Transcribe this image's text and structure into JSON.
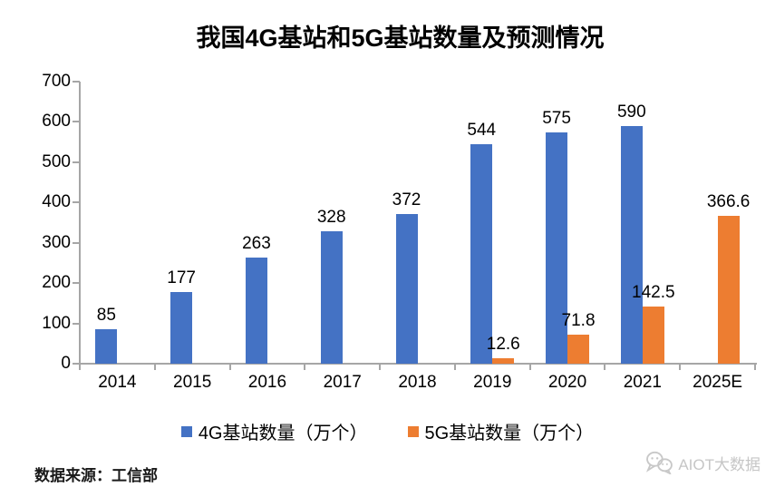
{
  "title": "我国4G基站和5G基站数量及预测情况",
  "chart_data": {
    "type": "bar",
    "categories": [
      "2014",
      "2015",
      "2016",
      "2017",
      "2018",
      "2019",
      "2020",
      "2021",
      "2025E"
    ],
    "series": [
      {
        "name": "4G基站数量（万个）",
        "color": "#4472C4",
        "values": [
          85,
          177,
          263,
          328,
          372,
          544,
          575,
          590,
          null
        ]
      },
      {
        "name": "5G基站数量（万个）",
        "color": "#ED7D31",
        "values": [
          null,
          null,
          null,
          null,
          null,
          12.6,
          71.8,
          142.5,
          366.6
        ]
      }
    ],
    "ylim": [
      0,
      700
    ],
    "ytick_step": 100,
    "xlabel": "",
    "ylabel": "",
    "grid": false,
    "legend_position": "bottom",
    "value_labels": true
  },
  "colors": {
    "axis": "#A6A6A6",
    "blue": "#4472C4",
    "orange": "#ED7D31",
    "watermark": "#C8C8C8"
  },
  "footer": {
    "source": "数据来源：工信部",
    "watermark": "AIOT大数据"
  }
}
